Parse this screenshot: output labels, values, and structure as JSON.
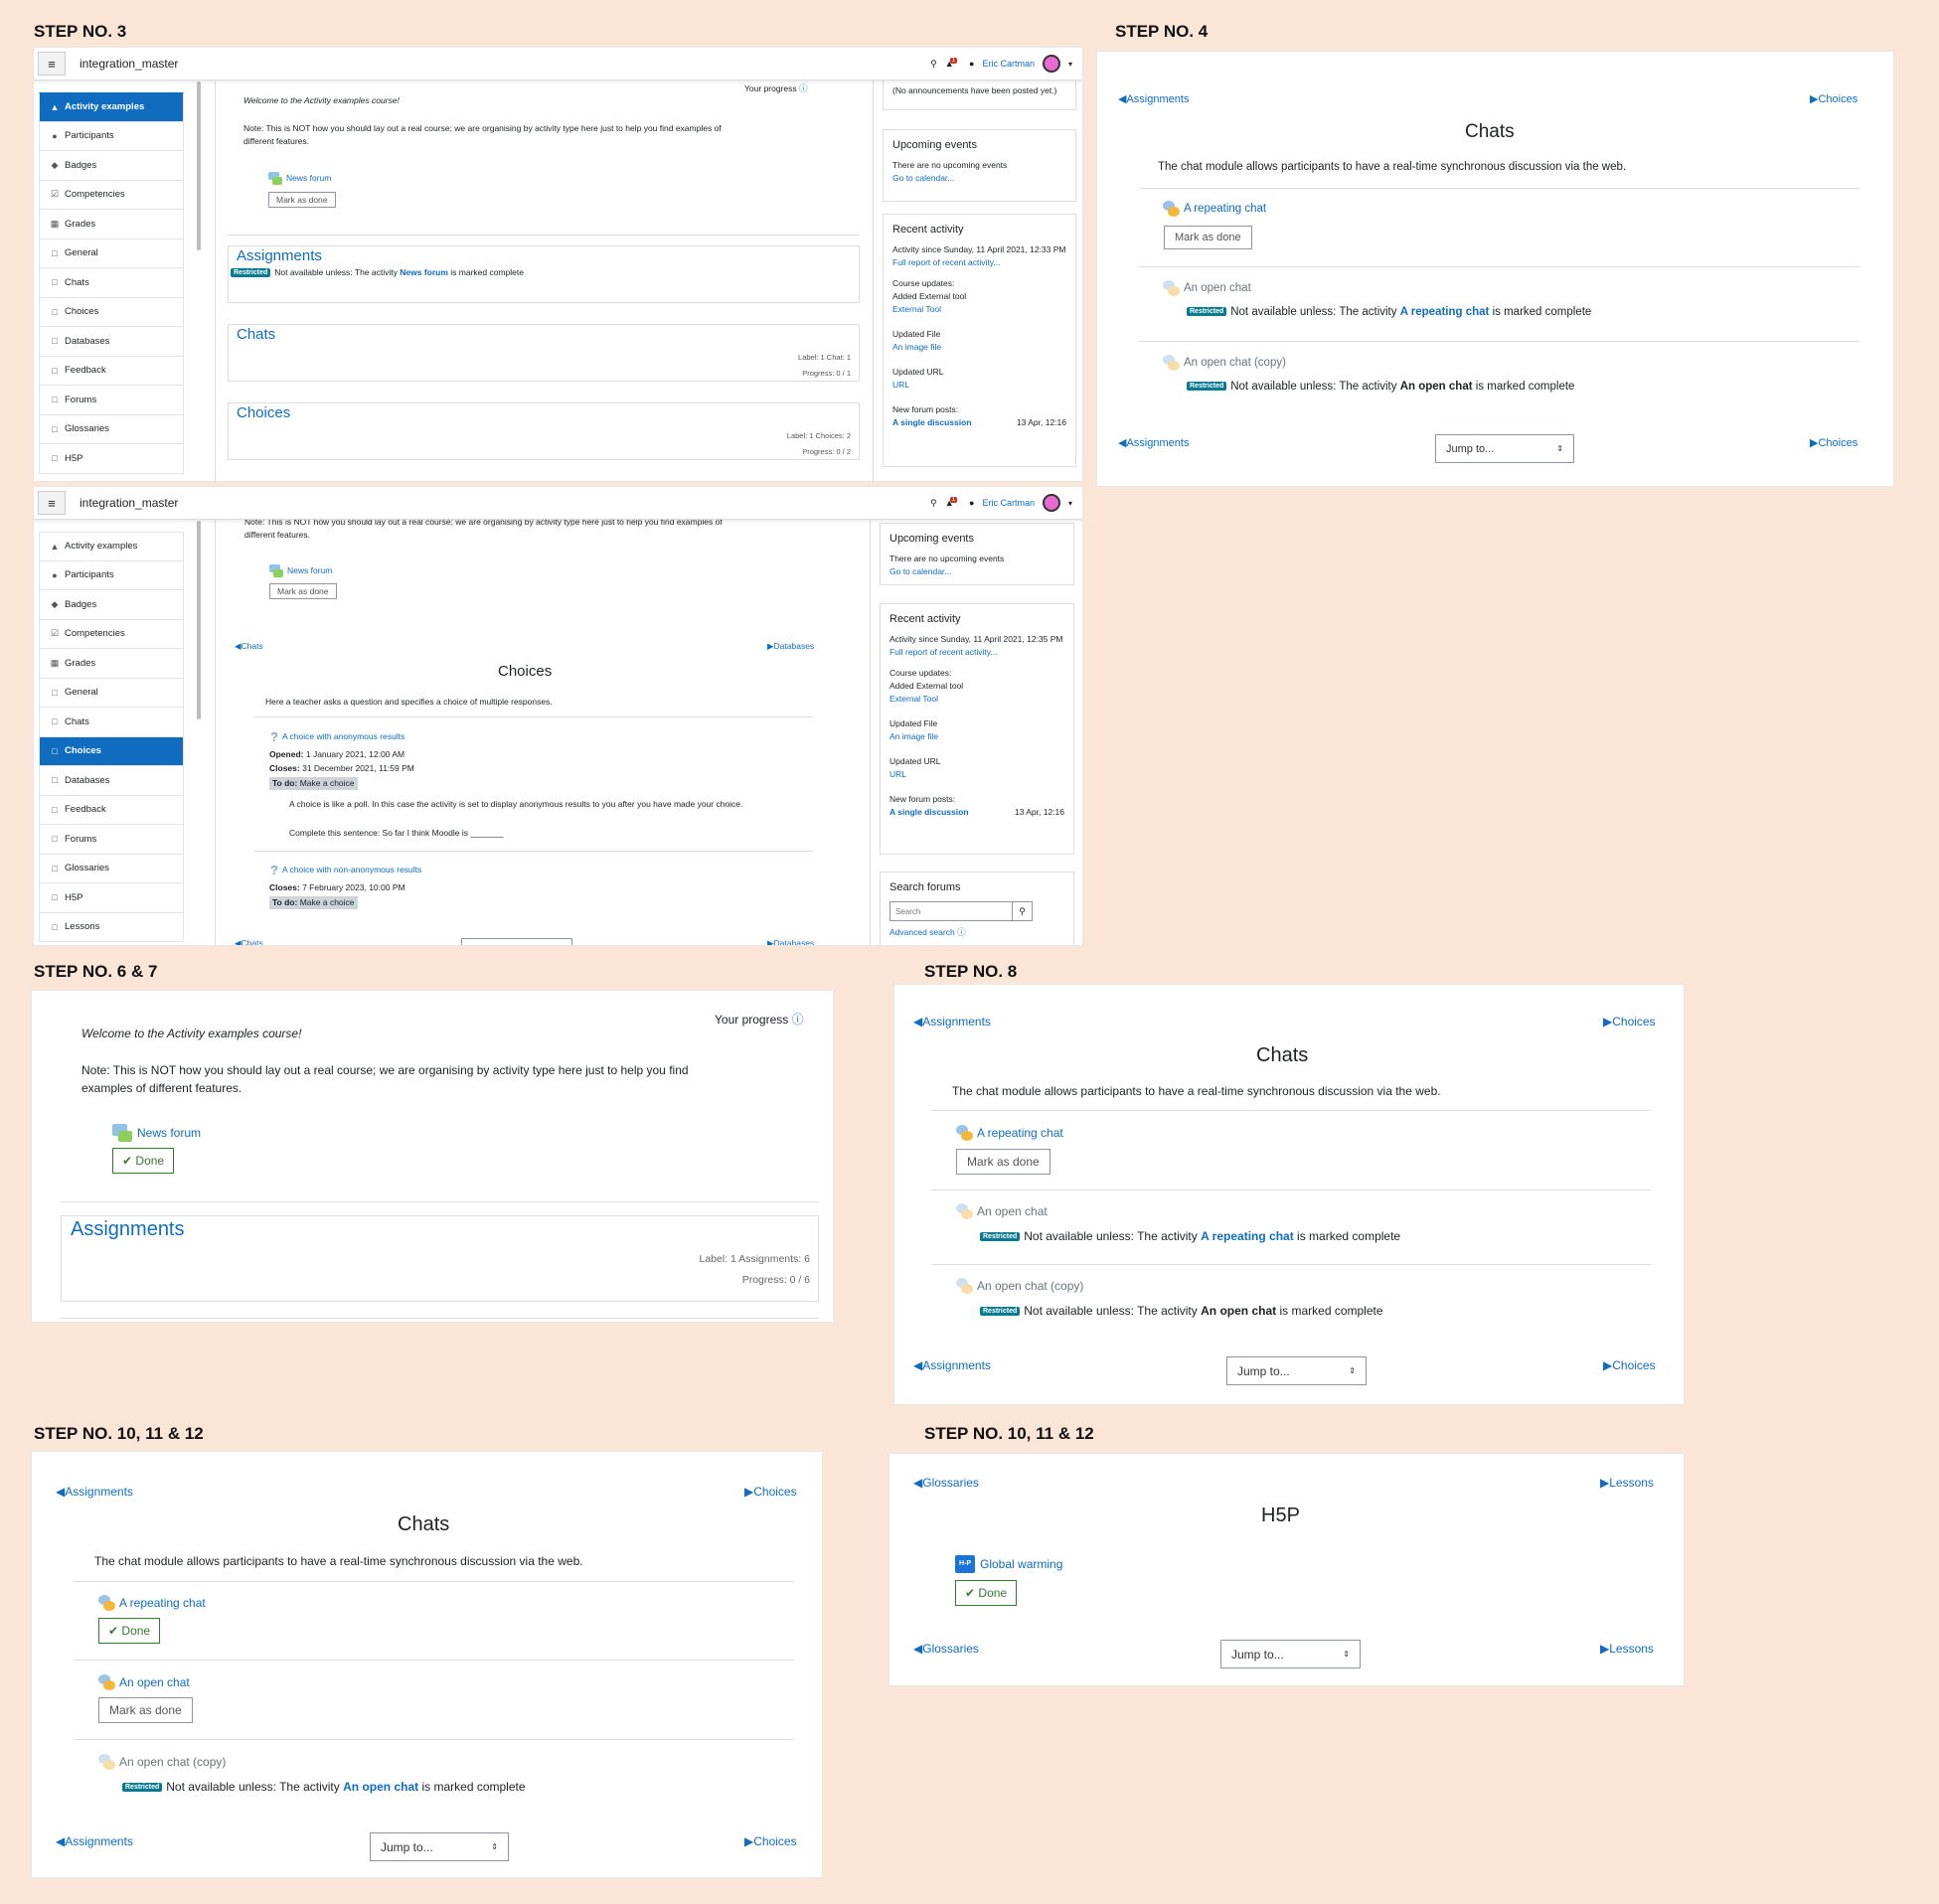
{
  "step_labels": {
    "s3": "STEP NO. 3",
    "s4": "STEP NO. 4",
    "s67": "STEP NO. 6 & 7",
    "s8": "STEP NO. 8",
    "s1012a": "STEP NO. 10, 11 & 12",
    "s1012b": "STEP NO. 10, 11 & 12"
  },
  "header": {
    "site_name": "integration_master",
    "user_name": "Eric Cartman",
    "notif_count": "1"
  },
  "drawer": {
    "items": [
      "Activity examples",
      "Participants",
      "Badges",
      "Competencies",
      "Grades",
      "General",
      "Chats",
      "Choices",
      "Databases",
      "Feedback",
      "Forums",
      "Glossaries",
      "H5P",
      "Lessons"
    ],
    "icons": [
      "graduation-cap-icon",
      "users-icon",
      "shield-icon",
      "check-square-icon",
      "table-icon",
      "folder-icon",
      "folder-icon",
      "folder-icon",
      "folder-icon",
      "folder-icon",
      "folder-icon",
      "folder-icon",
      "folder-icon",
      "folder-icon"
    ]
  },
  "course": {
    "your_progress": "Your progress",
    "welcome": "Welcome to the Activity examples course!",
    "note": "Note: This is NOT how you should lay out a real course; we are organising by activity type here just to help you find examples of different features.",
    "news_forum": "News forum",
    "mark_as_done": "Mark as done",
    "done": "Done",
    "assignments_title": "Assignments",
    "not_available_prefix": "Not available unless: The activity",
    "is_marked_complete": "is marked complete",
    "restricted": "Restricted",
    "chats_title": "Chats",
    "chats_meta1": "Label: 1   Chat: 1",
    "chats_meta2": "Progress: 0 / 1",
    "choices_title": "Choices",
    "choices_meta1": "Label: 1   Choices: 2",
    "choices_meta2": "Progress: 0 / 2",
    "assign_meta1": "Label: 1   Assignments: 6",
    "assign_meta2": "Progress: 0 / 6"
  },
  "blocks": {
    "announcements_none": "(No announcements have been posted yet.)",
    "upcoming_title": "Upcoming events",
    "upcoming_none": "There are no upcoming events",
    "go_calendar": "Go to calendar...",
    "recent_title": "Recent activity",
    "activity_since_1": "Activity since Sunday, 11 April 2021, 12:33 PM",
    "activity_since_2": "Activity since Sunday, 11 April 2021, 12:35 PM",
    "full_report": "Full report of recent activity...",
    "course_updates": "Course updates:",
    "added_external": "Added External tool",
    "external_tool": "External Tool",
    "updated_file": "Updated File",
    "an_image_file": "An image file",
    "updated_url": "Updated URL",
    "url": "URL",
    "new_forum_posts": "New forum posts:",
    "single_discussion": "A single discussion",
    "discussion_date": "13 Apr, 12:16",
    "search_forums_title": "Search forums",
    "search_placeholder": "Search",
    "advanced_search": "Advanced search"
  },
  "choices_page": {
    "prev": "Chats",
    "next": "Databases",
    "title": "Choices",
    "summary": "Here a teacher asks a question and specifies a choice of multiple responses.",
    "choice1": "A choice with anonymous results",
    "opened_label": "Opened:",
    "opened_value": "1 January 2021, 12:00 AM",
    "closes_label": "Closes:",
    "closes1_value": "31 December 2021, 11:59 PM",
    "todo": "To do:",
    "make_choice": "Make a choice",
    "desc1": "A choice is like a poll. In this case the activity is set to display anonymous results to you after you have made your choice.",
    "desc2": "Complete this sentence: So far I think Moodle is _______",
    "choice2": "A choice with non-anonymous results",
    "closes2_value": "7 February 2023, 10:00 PM"
  },
  "chats_page": {
    "prev": "Assignments",
    "next": "Choices",
    "title": "Chats",
    "summary": "The chat module allows participants to have a real-time synchronous discussion via the web.",
    "chat1": "A repeating chat",
    "chat2": "An open chat",
    "chat3": "An open chat (copy)",
    "jump_to": "Jump to..."
  },
  "h5p_page": {
    "prev": "Glossaries",
    "next": "Lessons",
    "title": "H5P",
    "activity": "Global warming",
    "done": "Done",
    "jump_to": "Jump to...",
    "icon_text": "H-P"
  }
}
